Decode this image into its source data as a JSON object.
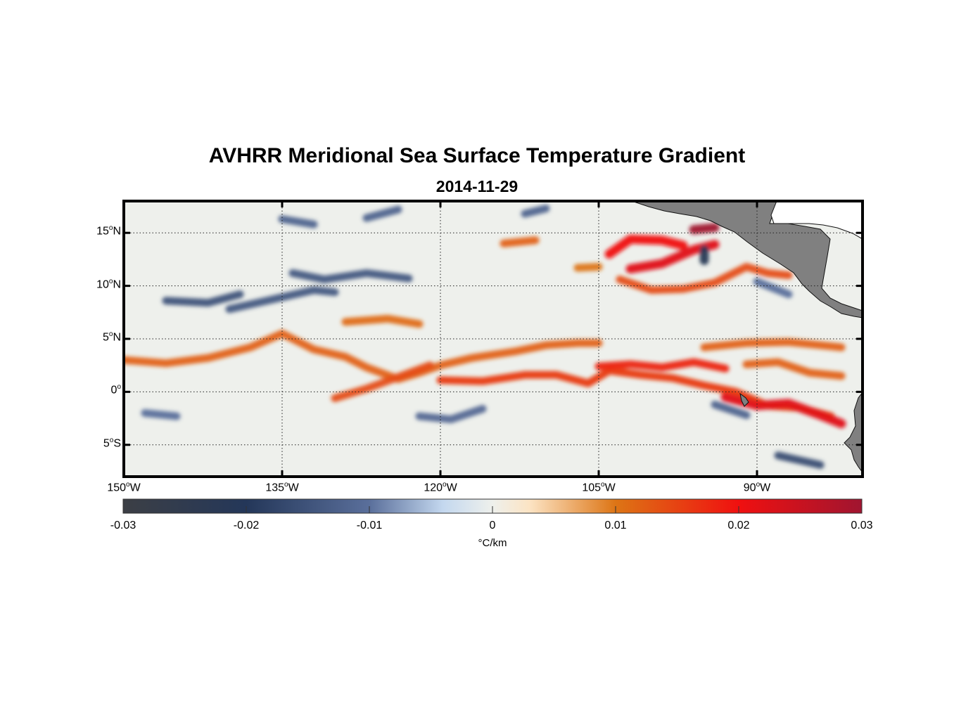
{
  "title": "AVHRR Meridional Sea Surface Temperature Gradient",
  "subtitle": "2014-11-29",
  "map": {
    "projection": "equirectangular",
    "lon_range": [
      -150,
      -80
    ],
    "lat_range": [
      -8,
      18
    ],
    "grid": "dotted",
    "land_color": "#808080",
    "ocean_neutral_color": "#eef0ec"
  },
  "axes": {
    "lat_ticks": [
      {
        "value": 15,
        "deg": "15",
        "hemi": "N"
      },
      {
        "value": 10,
        "deg": "10",
        "hemi": "N"
      },
      {
        "value": 5,
        "deg": "5",
        "hemi": "N"
      },
      {
        "value": 0,
        "deg": "0",
        "hemi": ""
      },
      {
        "value": -5,
        "deg": "5",
        "hemi": "S"
      }
    ],
    "lon_ticks": [
      {
        "value": -150,
        "deg": "150",
        "hemi": "W"
      },
      {
        "value": -135,
        "deg": "135",
        "hemi": "W"
      },
      {
        "value": -120,
        "deg": "120",
        "hemi": "W"
      },
      {
        "value": -105,
        "deg": "105",
        "hemi": "W"
      },
      {
        "value": -90,
        "deg": "90",
        "hemi": "W"
      }
    ]
  },
  "colorbar": {
    "range": [
      -0.03,
      0.03
    ],
    "ticks": [
      "-0.03",
      "-0.02",
      "-0.01",
      "0",
      "0.01",
      "0.02",
      "0.03"
    ],
    "units": "°C/km",
    "stops": [
      {
        "value": -0.03,
        "color": "#3c3f45"
      },
      {
        "value": -0.02,
        "color": "#243759"
      },
      {
        "value": -0.01,
        "color": "#5a6f9b"
      },
      {
        "value": -0.004,
        "color": "#c4d8ef"
      },
      {
        "value": 0,
        "color": "#eef0ec"
      },
      {
        "value": 0.003,
        "color": "#fce4c4"
      },
      {
        "value": 0.01,
        "color": "#dd7515"
      },
      {
        "value": 0.02,
        "color": "#f01010"
      },
      {
        "value": 0.03,
        "color": "#a01530"
      }
    ]
  },
  "chart_data": {
    "type": "heatmap",
    "variable": "meridional SST gradient",
    "units": "°C/km",
    "date": "2014-11-29",
    "features": [
      {
        "kind": "warm_front",
        "value": 0.012,
        "path": [
          [
            -150,
            3
          ],
          [
            -146,
            2.7
          ],
          [
            -142,
            3.2
          ],
          [
            -138,
            4.2
          ],
          [
            -135,
            5.5
          ],
          [
            -132,
            4
          ],
          [
            -129,
            3.3
          ],
          [
            -127,
            2.3
          ],
          [
            -124,
            1.2
          ],
          [
            -122,
            1.8
          ],
          [
            -120,
            2.5
          ],
          [
            -117,
            3.2
          ],
          [
            -113,
            3.8
          ],
          [
            -110,
            4.4
          ],
          [
            -107,
            4.6
          ],
          [
            -105,
            4.6
          ]
        ]
      },
      {
        "kind": "warm_front",
        "value": 0.014,
        "path": [
          [
            -130,
            -0.6
          ],
          [
            -127,
            0.3
          ],
          [
            -124,
            1.4
          ],
          [
            -121,
            2.5
          ]
        ]
      },
      {
        "kind": "warm_front",
        "value": 0.016,
        "path": [
          [
            -120,
            1.1
          ],
          [
            -116,
            1
          ],
          [
            -112,
            1.6
          ],
          [
            -109,
            1.6
          ],
          [
            -106,
            0.8
          ],
          [
            -104,
            2
          ],
          [
            -101,
            1.6
          ],
          [
            -98,
            1.3
          ],
          [
            -95,
            0.6
          ],
          [
            -92,
            0
          ],
          [
            -89,
            -1.3
          ],
          [
            -86,
            -1.5
          ],
          [
            -83,
            -2.3
          ]
        ]
      },
      {
        "kind": "warm_front",
        "value": 0.018,
        "path": [
          [
            -105,
            2.4
          ],
          [
            -102,
            2.6
          ],
          [
            -99,
            2.3
          ],
          [
            -96,
            2.8
          ],
          [
            -93,
            2.2
          ]
        ]
      },
      {
        "kind": "warm_front",
        "value": 0.022,
        "path": [
          [
            -93,
            -0.5
          ],
          [
            -90,
            -1.3
          ],
          [
            -87,
            -1.1
          ],
          [
            -84,
            -2.2
          ],
          [
            -82,
            -3
          ]
        ]
      },
      {
        "kind": "warm_front",
        "value": 0.02,
        "path": [
          [
            -104,
            13
          ],
          [
            -102,
            14.4
          ],
          [
            -99,
            14.3
          ],
          [
            -97,
            13.8
          ]
        ]
      },
      {
        "kind": "warm_front",
        "value": 0.022,
        "path": [
          [
            -102,
            11.6
          ],
          [
            -99,
            12.1
          ],
          [
            -96,
            13.4
          ],
          [
            -94,
            13.9
          ]
        ]
      },
      {
        "kind": "warm_front",
        "value": 0.014,
        "path": [
          [
            -103,
            10.6
          ],
          [
            -100,
            9.6
          ],
          [
            -97,
            9.7
          ],
          [
            -94,
            10.3
          ],
          [
            -91,
            11.8
          ],
          [
            -89,
            11.2
          ],
          [
            -87,
            11
          ]
        ]
      },
      {
        "kind": "warm_front",
        "value": 0.03,
        "path": [
          [
            -96,
            15.3
          ],
          [
            -94,
            15.5
          ]
        ]
      },
      {
        "kind": "warm_front",
        "value": 0.012,
        "path": [
          [
            -114,
            14
          ],
          [
            -111,
            14.3
          ]
        ]
      },
      {
        "kind": "warm_front",
        "value": 0.01,
        "path": [
          [
            -107,
            11.7
          ],
          [
            -105,
            11.8
          ]
        ]
      },
      {
        "kind": "warm_front",
        "value": 0.011,
        "path": [
          [
            -129,
            6.6
          ],
          [
            -125,
            6.9
          ],
          [
            -122,
            6.4
          ]
        ]
      },
      {
        "kind": "warm_front",
        "value": 0.012,
        "path": [
          [
            -95,
            4.2
          ],
          [
            -91,
            4.6
          ],
          [
            -87,
            4.7
          ],
          [
            -82,
            4.2
          ]
        ]
      },
      {
        "kind": "warm_front",
        "value": 0.012,
        "path": [
          [
            -91,
            2.6
          ],
          [
            -88,
            2.8
          ],
          [
            -85,
            1.8
          ],
          [
            -82,
            1.5
          ]
        ]
      },
      {
        "kind": "cold_front",
        "value": -0.014,
        "path": [
          [
            -140,
            7.8
          ],
          [
            -136,
            8.7
          ],
          [
            -132,
            9.6
          ],
          [
            -130,
            9.4
          ]
        ]
      },
      {
        "kind": "cold_front",
        "value": -0.015,
        "path": [
          [
            -146,
            8.6
          ],
          [
            -142,
            8.4
          ],
          [
            -139,
            9.2
          ]
        ]
      },
      {
        "kind": "cold_front",
        "value": -0.014,
        "path": [
          [
            -134,
            11.2
          ],
          [
            -131,
            10.6
          ],
          [
            -127,
            11.2
          ],
          [
            -123,
            10.7
          ]
        ]
      },
      {
        "kind": "cold_front",
        "value": -0.012,
        "path": [
          [
            -135,
            16.3
          ],
          [
            -132,
            15.8
          ]
        ]
      },
      {
        "kind": "cold_front",
        "value": -0.012,
        "path": [
          [
            -127,
            16.4
          ],
          [
            -124,
            17.2
          ]
        ]
      },
      {
        "kind": "cold_front",
        "value": -0.012,
        "path": [
          [
            -112,
            16.8
          ],
          [
            -110,
            17.3
          ]
        ]
      },
      {
        "kind": "cold_front",
        "value": -0.011,
        "path": [
          [
            -122,
            -2.3
          ],
          [
            -119,
            -2.6
          ],
          [
            -116,
            -1.6
          ]
        ]
      },
      {
        "kind": "cold_front",
        "value": -0.01,
        "path": [
          [
            -148,
            -2
          ],
          [
            -145,
            -2.3
          ]
        ]
      },
      {
        "kind": "cold_front",
        "value": -0.012,
        "path": [
          [
            -94,
            -1.2
          ],
          [
            -91,
            -2.2
          ]
        ]
      },
      {
        "kind": "cold_front",
        "value": -0.016,
        "path": [
          [
            -88,
            -6
          ],
          [
            -84,
            -6.9
          ]
        ]
      },
      {
        "kind": "cold_front",
        "value": -0.022,
        "path": [
          [
            -95,
            13.4
          ],
          [
            -95,
            12.4
          ]
        ]
      },
      {
        "kind": "cold_front",
        "value": -0.01,
        "path": [
          [
            -90,
            10.4
          ],
          [
            -87,
            9.2
          ]
        ]
      }
    ]
  }
}
